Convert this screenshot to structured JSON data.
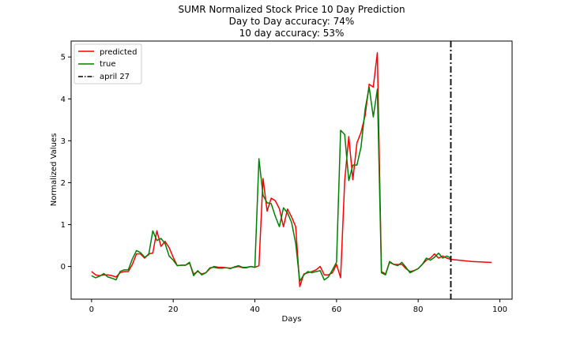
{
  "chart_data": {
    "type": "line",
    "title": [
      "SUMR Normalized Stock Price 10 Day Prediction",
      "Day to Day accuracy: 74%",
      "10 day accuracy: 53%"
    ],
    "xlabel": "Days",
    "ylabel": "Normalized Values",
    "xlim": [
      -5,
      103
    ],
    "ylim": [
      -0.78,
      5.38
    ],
    "xticks": [
      0,
      20,
      40,
      60,
      80,
      100
    ],
    "yticks": [
      0,
      1,
      2,
      3,
      4,
      5
    ],
    "grid": false,
    "legend_position": "top-left",
    "vline": {
      "x": 88,
      "label": "april 27",
      "color": "#000000",
      "style": "dashdot"
    },
    "series": [
      {
        "name": "predicted",
        "color": "#ff0000",
        "x": [
          0,
          1,
          2,
          3,
          4,
          5,
          6,
          7,
          8,
          9,
          10,
          11,
          12,
          13,
          14,
          15,
          16,
          17,
          18,
          19,
          20,
          21,
          22,
          23,
          24,
          25,
          26,
          27,
          28,
          29,
          30,
          31,
          32,
          33,
          34,
          35,
          36,
          37,
          38,
          39,
          40,
          41,
          42,
          43,
          44,
          45,
          46,
          47,
          48,
          49,
          50,
          51,
          52,
          53,
          54,
          55,
          56,
          57,
          58,
          59,
          60,
          61,
          62,
          63,
          64,
          65,
          66,
          67,
          68,
          69,
          70,
          71,
          72,
          73,
          74,
          75,
          76,
          77,
          78,
          79,
          80,
          81,
          82,
          83,
          84,
          85,
          86,
          87,
          88,
          89,
          90,
          91,
          92,
          93,
          94,
          95,
          96,
          97,
          98
        ],
        "y": [
          -0.12,
          -0.2,
          -0.22,
          -0.2,
          -0.2,
          -0.22,
          -0.25,
          -0.15,
          -0.12,
          -0.12,
          0.05,
          0.3,
          0.3,
          0.2,
          0.3,
          0.32,
          0.85,
          0.48,
          0.6,
          0.45,
          0.22,
          0.02,
          0.03,
          0.03,
          0.08,
          -0.18,
          -0.12,
          -0.18,
          -0.15,
          -0.05,
          0,
          -0.02,
          -0.02,
          -0.03,
          -0.04,
          -0.02,
          0,
          -0.03,
          -0.03,
          0,
          -0.02,
          0.02,
          2.1,
          1.32,
          1.63,
          1.57,
          1.38,
          0.95,
          1.37,
          1.18,
          0.95,
          -0.48,
          -0.18,
          -0.15,
          -0.12,
          -0.08,
          0,
          -0.2,
          -0.2,
          -0.15,
          0.05,
          -0.27,
          2.05,
          3.1,
          2.07,
          2.95,
          3.2,
          3.6,
          4.35,
          4.28,
          5.1,
          -0.12,
          -0.18,
          0.1,
          0.05,
          0.05,
          0.05,
          -0.05,
          -0.12,
          -0.1,
          -0.05,
          0.05,
          0.15,
          0.2,
          0.3,
          0.2,
          0.25,
          0.2,
          0.17,
          0.16,
          0.15,
          0.14,
          0.13,
          0.12,
          0.115,
          0.11,
          0.105,
          0.1,
          0.095
        ]
      },
      {
        "name": "true",
        "color": "#008000",
        "x": [
          0,
          1,
          2,
          3,
          4,
          5,
          6,
          7,
          8,
          9,
          10,
          11,
          12,
          13,
          14,
          15,
          16,
          17,
          18,
          19,
          20,
          21,
          22,
          23,
          24,
          25,
          26,
          27,
          28,
          29,
          30,
          31,
          32,
          33,
          34,
          35,
          36,
          37,
          38,
          39,
          40,
          41,
          42,
          43,
          44,
          45,
          46,
          47,
          48,
          49,
          50,
          51,
          52,
          53,
          54,
          55,
          56,
          57,
          58,
          59,
          60,
          61,
          62,
          63,
          64,
          65,
          66,
          67,
          68,
          69,
          70,
          71,
          72,
          73,
          74,
          75,
          76,
          77,
          78,
          79,
          80,
          81,
          82,
          83,
          84,
          85,
          86,
          87,
          88
        ],
        "y": [
          -0.22,
          -0.27,
          -0.23,
          -0.17,
          -0.25,
          -0.28,
          -0.32,
          -0.12,
          -0.08,
          -0.08,
          0.18,
          0.38,
          0.33,
          0.22,
          0.28,
          0.85,
          0.62,
          0.67,
          0.55,
          0.25,
          0.15,
          0.02,
          0.03,
          0.03,
          0.1,
          -0.22,
          -0.1,
          -0.2,
          -0.15,
          -0.03,
          -0.02,
          -0.04,
          -0.04,
          -0.03,
          -0.05,
          -0.01,
          0.02,
          -0.02,
          -0.02,
          0,
          -0.02,
          2.57,
          1.7,
          1.52,
          1.5,
          1.2,
          0.95,
          1.4,
          1.28,
          1.05,
          0.55,
          -0.35,
          -0.2,
          -0.12,
          -0.15,
          -0.12,
          -0.1,
          -0.32,
          -0.25,
          -0.08,
          0.1,
          3.25,
          3.15,
          2.05,
          2.42,
          2.42,
          2.85,
          3.75,
          4.28,
          3.57,
          4.23,
          -0.15,
          -0.2,
          0.12,
          0.05,
          0.02,
          0.1,
          -0.02,
          -0.15,
          -0.1,
          -0.05,
          0.05,
          0.2,
          0.15,
          0.22,
          0.32,
          0.2,
          0.25,
          0.2
        ]
      }
    ]
  }
}
